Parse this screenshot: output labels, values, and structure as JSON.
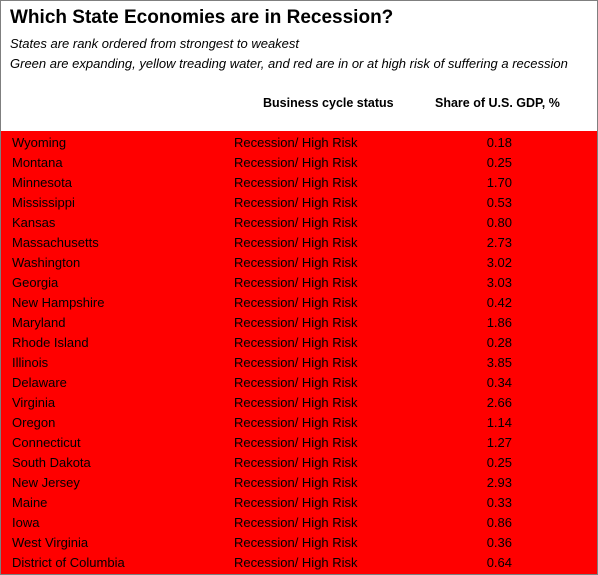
{
  "title": "Which State Economies are in Recession?",
  "subtitle_1": "States are rank ordered from strongest to weakest",
  "subtitle_2": "Green are expanding, yellow treading water, and red are in or at high risk of suffering a recession",
  "colors": {
    "recession": "#ff0000",
    "background": "#ffffff",
    "text": "#000000"
  },
  "chart_data": {
    "type": "table",
    "columns": [
      "",
      "Business cycle status",
      "Share of U.S. GDP, %"
    ],
    "rows": [
      {
        "state": "Wyoming",
        "status": "Recession/ High Risk",
        "share": "0.18"
      },
      {
        "state": "Montana",
        "status": "Recession/ High Risk",
        "share": "0.25"
      },
      {
        "state": "Minnesota",
        "status": "Recession/ High Risk",
        "share": "1.70"
      },
      {
        "state": "Mississippi",
        "status": "Recession/ High Risk",
        "share": "0.53"
      },
      {
        "state": "Kansas",
        "status": "Recession/ High Risk",
        "share": "0.80"
      },
      {
        "state": "Massachusetts",
        "status": "Recession/ High Risk",
        "share": "2.73"
      },
      {
        "state": "Washington",
        "status": "Recession/ High Risk",
        "share": "3.02"
      },
      {
        "state": "Georgia",
        "status": "Recession/ High Risk",
        "share": "3.03"
      },
      {
        "state": "New Hampshire",
        "status": "Recession/ High Risk",
        "share": "0.42"
      },
      {
        "state": "Maryland",
        "status": "Recession/ High Risk",
        "share": "1.86"
      },
      {
        "state": "Rhode Island",
        "status": "Recession/ High Risk",
        "share": "0.28"
      },
      {
        "state": "Illinois",
        "status": "Recession/ High Risk",
        "share": "3.85"
      },
      {
        "state": "Delaware",
        "status": "Recession/ High Risk",
        "share": "0.34"
      },
      {
        "state": "Virginia",
        "status": "Recession/ High Risk",
        "share": "2.66"
      },
      {
        "state": "Oregon",
        "status": "Recession/ High Risk",
        "share": "1.14"
      },
      {
        "state": "Connecticut",
        "status": "Recession/ High Risk",
        "share": "1.27"
      },
      {
        "state": "South Dakota",
        "status": "Recession/ High Risk",
        "share": "0.25"
      },
      {
        "state": "New Jersey",
        "status": "Recession/ High Risk",
        "share": "2.93"
      },
      {
        "state": "Maine",
        "status": "Recession/ High Risk",
        "share": "0.33"
      },
      {
        "state": "Iowa",
        "status": "Recession/ High Risk",
        "share": "0.86"
      },
      {
        "state": "West Virginia",
        "status": "Recession/ High Risk",
        "share": "0.36"
      },
      {
        "state": "District of Columbia",
        "status": "Recession/ High Risk",
        "share": "0.64"
      }
    ]
  }
}
